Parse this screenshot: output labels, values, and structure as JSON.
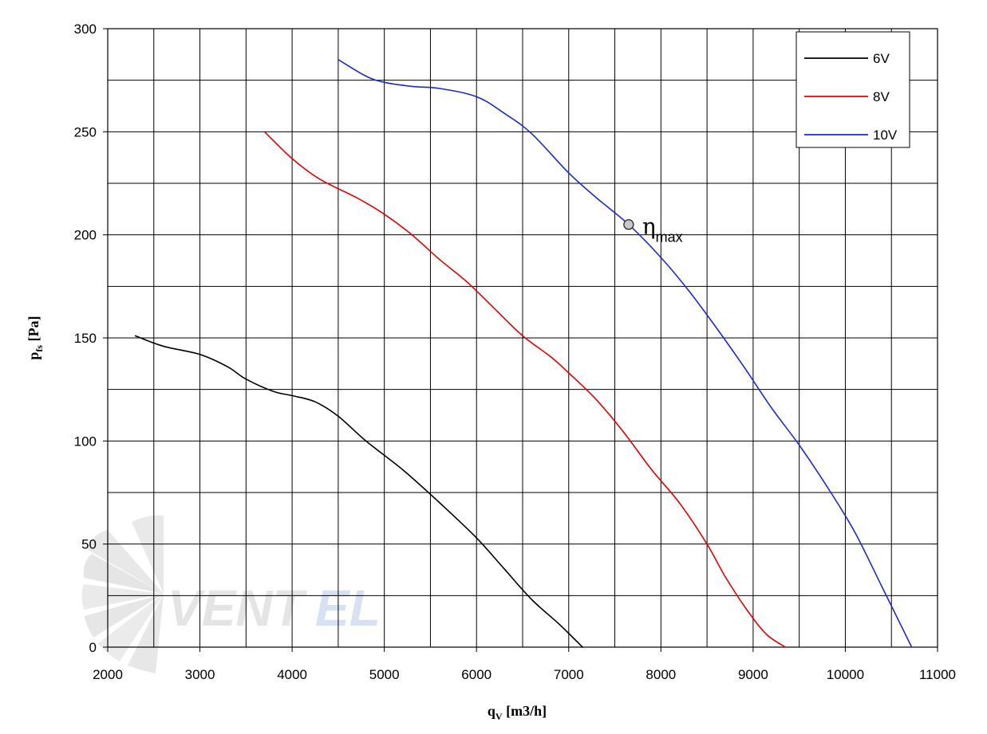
{
  "chart_data": {
    "type": "line",
    "xlabel": {
      "main": "q",
      "sub": "V",
      "unit": " [m3/h]"
    },
    "ylabel": {
      "main": "p",
      "sub": "fs",
      "unit": " [Pa]"
    },
    "xlim": [
      2000,
      11000
    ],
    "ylim": [
      0,
      300
    ],
    "xticks": [
      2000,
      3000,
      4000,
      5000,
      6000,
      7000,
      8000,
      9000,
      10000,
      11000
    ],
    "yticks": [
      0,
      50,
      100,
      150,
      200,
      250,
      300
    ],
    "grid": true,
    "legend_position": "top-right",
    "series": [
      {
        "name": "6V",
        "color": "#000000",
        "points": [
          [
            2300,
            151
          ],
          [
            2600,
            146
          ],
          [
            3000,
            142
          ],
          [
            3300,
            136
          ],
          [
            3500,
            130
          ],
          [
            3800,
            124
          ],
          [
            4000,
            122
          ],
          [
            4250,
            119
          ],
          [
            4500,
            112
          ],
          [
            4800,
            100
          ],
          [
            5200,
            86
          ],
          [
            5600,
            70
          ],
          [
            6000,
            53
          ],
          [
            6300,
            38
          ],
          [
            6600,
            23
          ],
          [
            6900,
            11
          ],
          [
            7150,
            0
          ]
        ]
      },
      {
        "name": "8V",
        "color": "#e60000",
        "points": [
          [
            3700,
            250
          ],
          [
            4000,
            237
          ],
          [
            4300,
            227
          ],
          [
            4700,
            218
          ],
          [
            5000,
            210
          ],
          [
            5300,
            200
          ],
          [
            5600,
            188
          ],
          [
            5900,
            177
          ],
          [
            6200,
            164
          ],
          [
            6500,
            151
          ],
          [
            6800,
            141
          ],
          [
            7000,
            133
          ],
          [
            7300,
            120
          ],
          [
            7600,
            104
          ],
          [
            7900,
            86
          ],
          [
            8200,
            70
          ],
          [
            8500,
            50
          ],
          [
            8700,
            34
          ],
          [
            8950,
            17
          ],
          [
            9150,
            6
          ],
          [
            9350,
            0
          ]
        ]
      },
      {
        "name": "10V",
        "color": "#1a2ad4",
        "points": [
          [
            4500,
            285
          ],
          [
            4800,
            277
          ],
          [
            5000,
            274
          ],
          [
            5300,
            272
          ],
          [
            5600,
            271
          ],
          [
            6000,
            267
          ],
          [
            6300,
            259
          ],
          [
            6600,
            249
          ],
          [
            7000,
            230
          ],
          [
            7300,
            218
          ],
          [
            7650,
            205
          ],
          [
            8000,
            189
          ],
          [
            8300,
            173
          ],
          [
            8600,
            155
          ],
          [
            8900,
            136
          ],
          [
            9200,
            116
          ],
          [
            9500,
            98
          ],
          [
            9800,
            78
          ],
          [
            10100,
            56
          ],
          [
            10400,
            29
          ],
          [
            10720,
            0
          ]
        ]
      }
    ],
    "annotations": [
      {
        "marker_x": 7650,
        "marker_y": 205,
        "text_main": "η",
        "text_sub": "max"
      }
    ]
  },
  "watermark": {
    "text_part1": "VENT",
    "text_part2": "EL"
  },
  "icons": {
    "watermark": "fan-blade-logo-icon",
    "marker": "efficiency-point-icon"
  }
}
